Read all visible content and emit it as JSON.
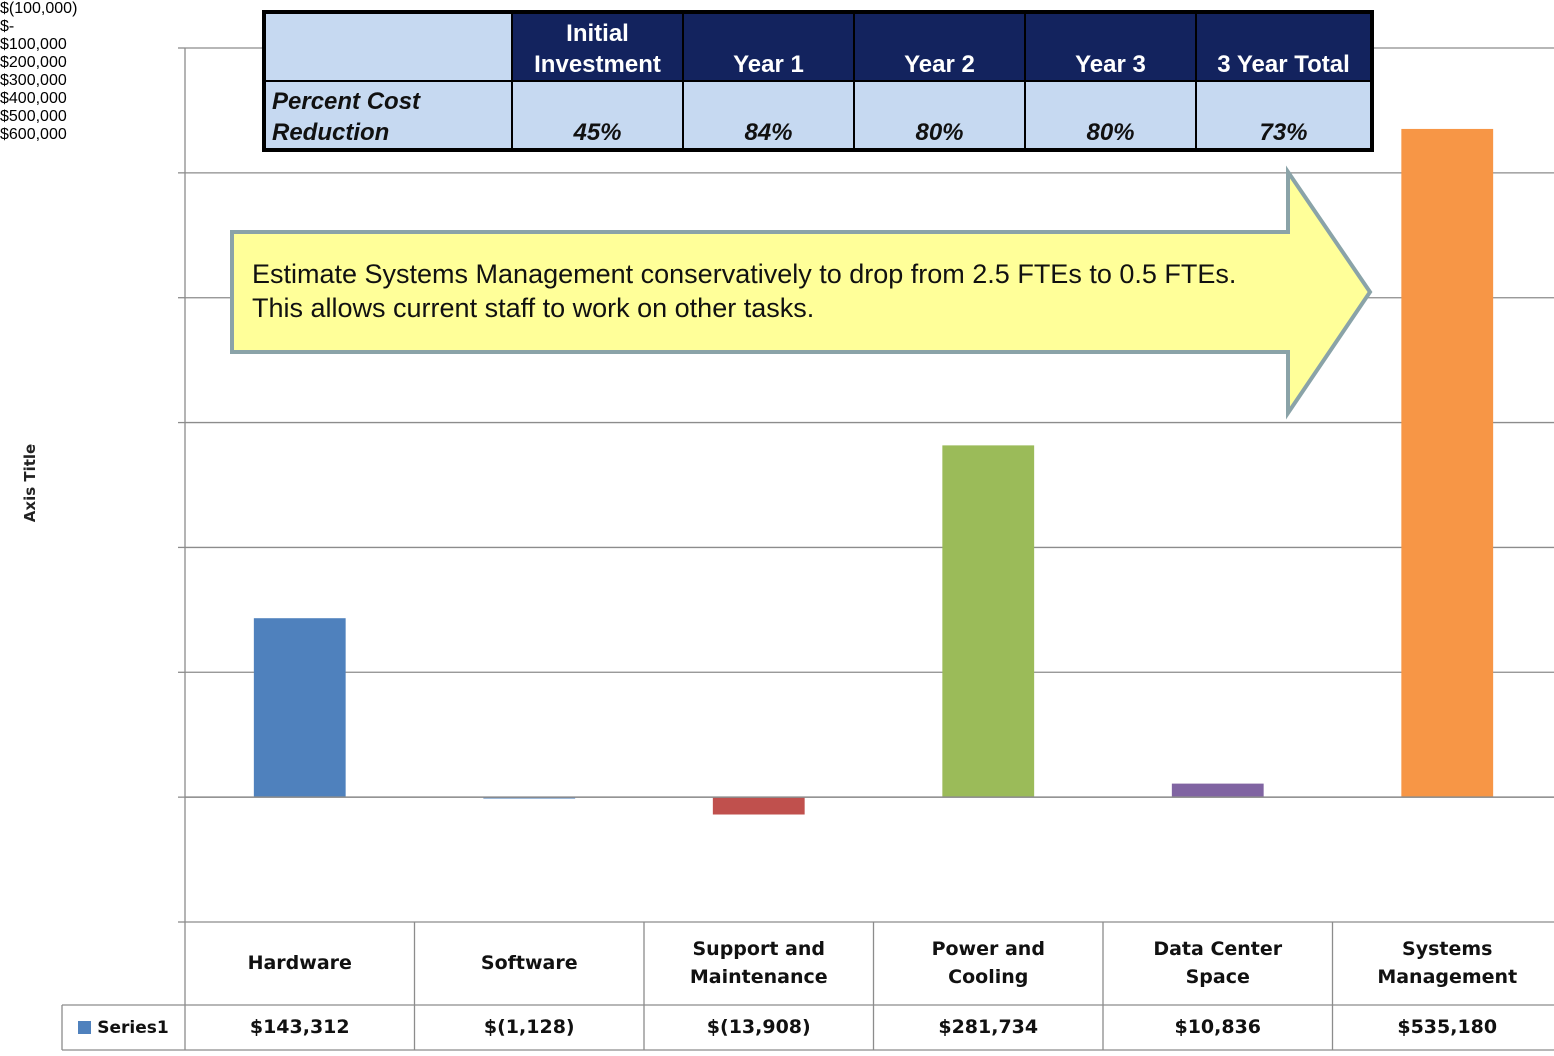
{
  "chart_data": {
    "type": "bar",
    "y_axis_label": "Axis Title",
    "categories": [
      "Hardware",
      "Software",
      "Support and Maintenance",
      "Power and Cooling",
      "Data Center Space",
      "Systems Management"
    ],
    "series": [
      {
        "name": "Series1",
        "colors": [
          "#4f81bd",
          "#4f81bd",
          "#c0504d",
          "#9bbb59",
          "#8064a2",
          "#f79646"
        ],
        "values": [
          143312,
          -1128,
          -13908,
          281734,
          10836,
          535180
        ],
        "value_labels": [
          "$143,312",
          "$(1,128)",
          "$(13,908)",
          "$281,734",
          "$10,836",
          "$535,180"
        ]
      }
    ],
    "ylim": [
      -100000,
      600000
    ],
    "yticks": [
      {
        "value": -100000,
        "label": "$(100,000)"
      },
      {
        "value": 0,
        "label": "$-"
      },
      {
        "value": 100000,
        "label": "$100,000"
      },
      {
        "value": 200000,
        "label": "$200,000"
      },
      {
        "value": 300000,
        "label": "$300,000"
      },
      {
        "value": 400000,
        "label": "$400,000"
      },
      {
        "value": 500000,
        "label": "$500,000"
      },
      {
        "value": 600000,
        "label": "$600,000"
      }
    ],
    "grid": true,
    "annotation": "Estimate Systems Management conservatively to drop from 2.5 FTEs to 0.5 FTEs.  This allows current staff to work on other tasks."
  },
  "cost_table": {
    "header": [
      "Initial Investment",
      "Year 1",
      "Year 2",
      "Year 3",
      "3 Year Total"
    ],
    "row_label": "Percent Cost Reduction",
    "cells": [
      "45%",
      "84%",
      "80%",
      "80%",
      "73%"
    ]
  }
}
